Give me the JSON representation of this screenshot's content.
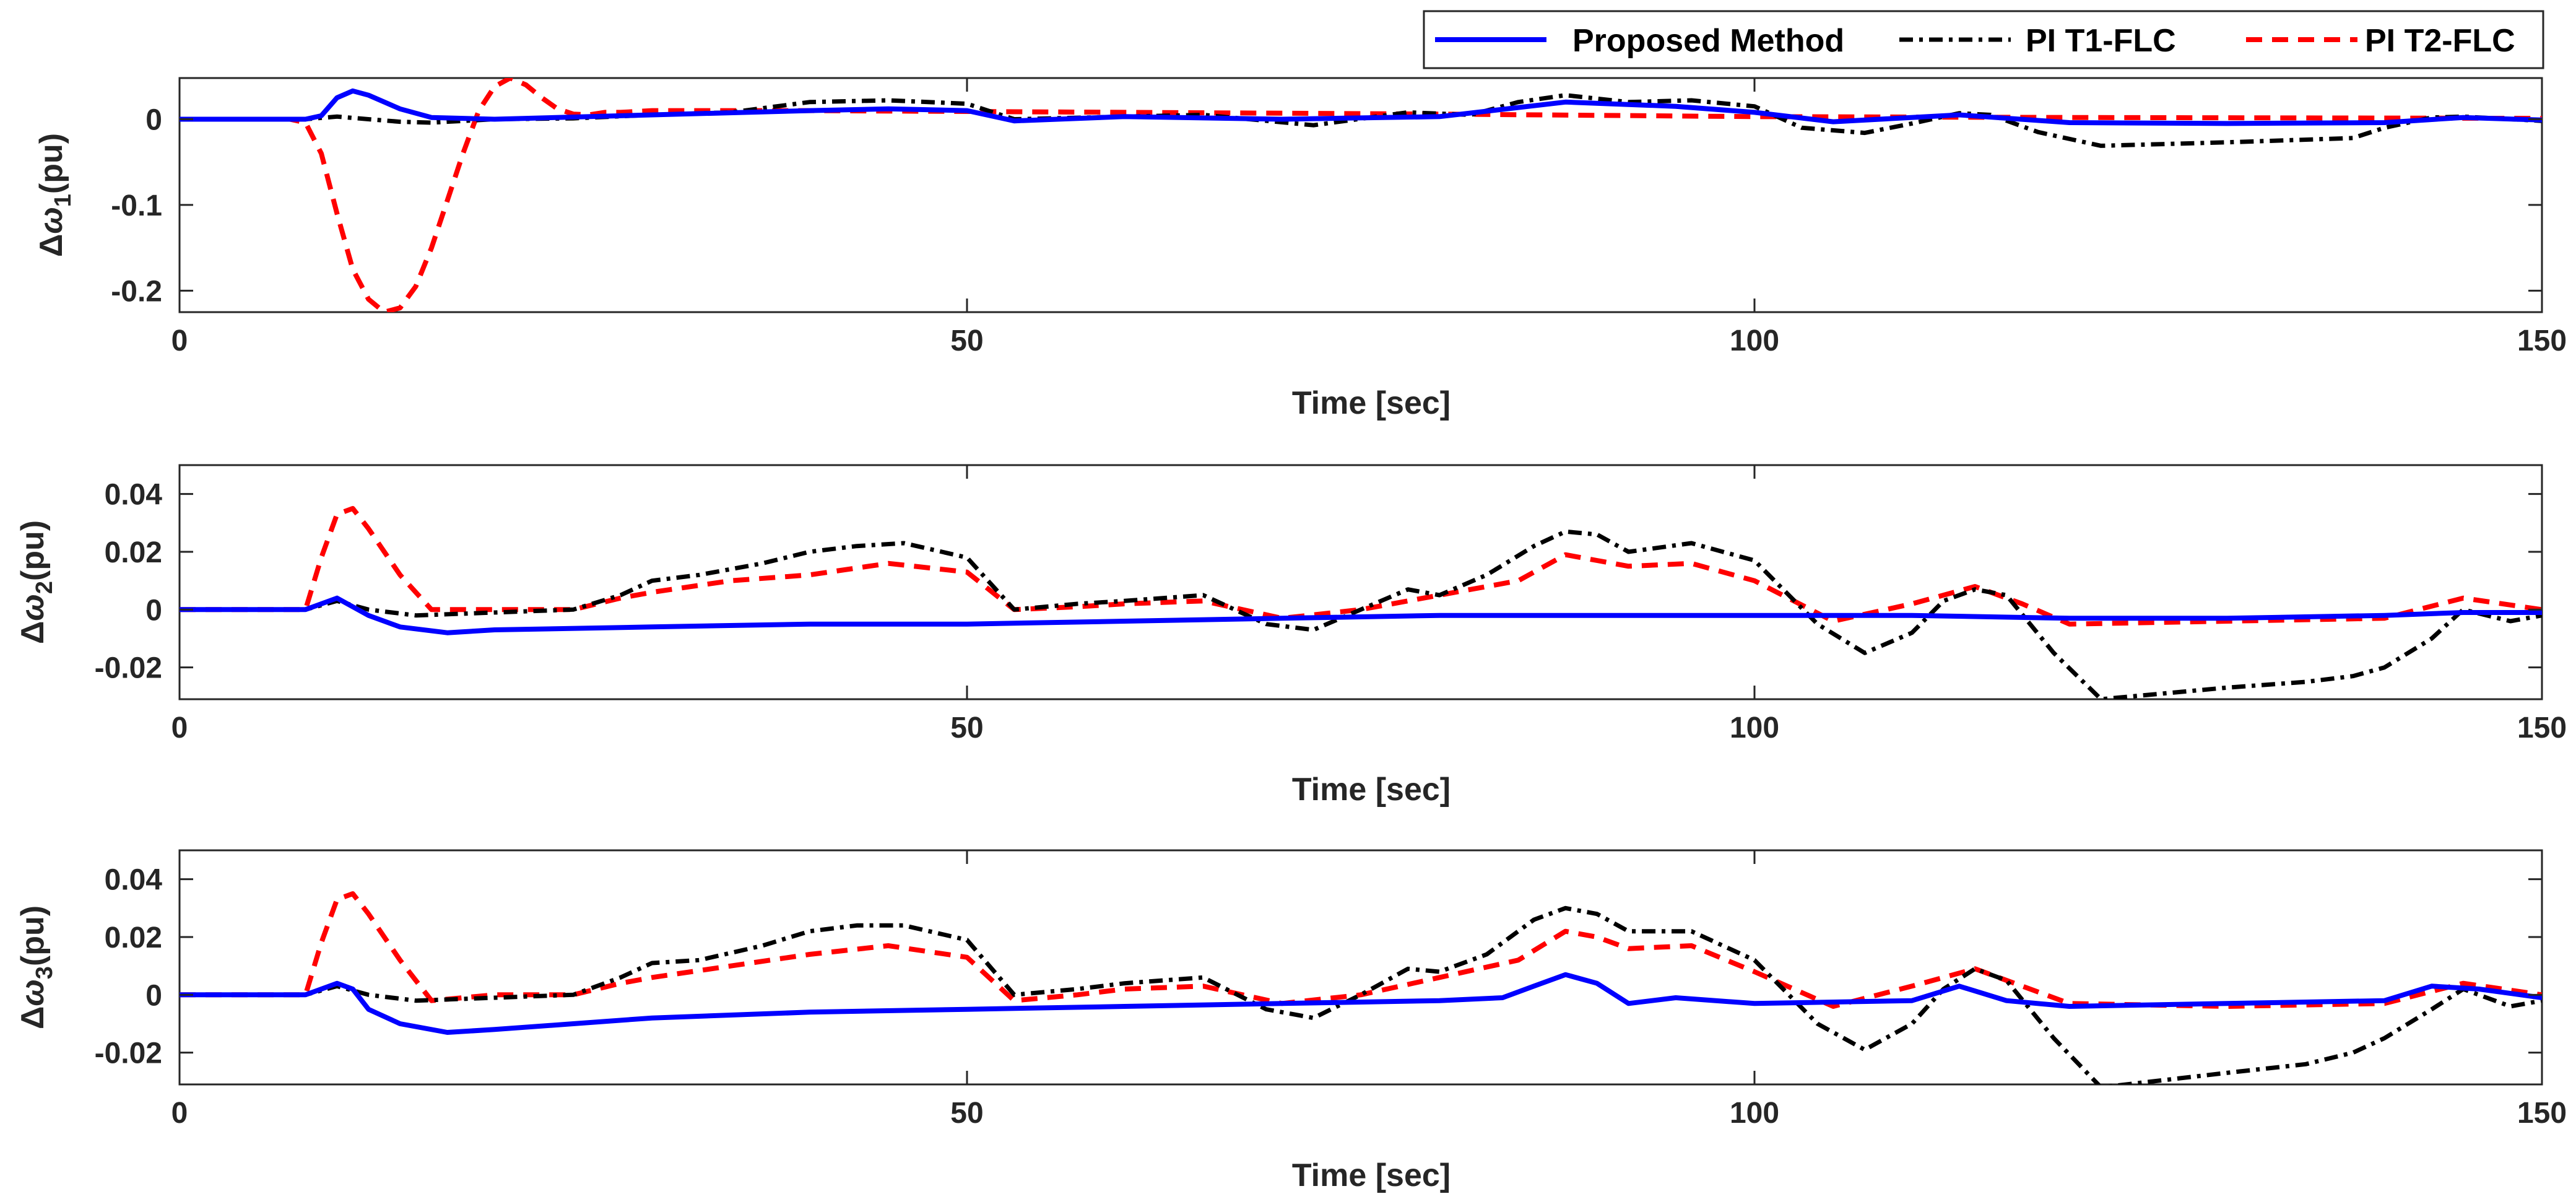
{
  "legend": {
    "entries": [
      {
        "label": "Proposed Method",
        "color": "#0000ff",
        "style": "solid"
      },
      {
        "label": "PI T1-FLC",
        "color": "#000000",
        "style": "dashdot"
      },
      {
        "label": "PI T2-FLC",
        "color": "#ff0000",
        "style": "dashed"
      }
    ]
  },
  "chart_data": [
    {
      "type": "line",
      "title": "",
      "xlabel": "Time [sec]",
      "ylabel": "Δω1(pu)",
      "ylabel_parts": {
        "delta": "Δ",
        "omega": "ω",
        "sub": "1",
        "unit": "(pu)"
      },
      "xlim": [
        0,
        150
      ],
      "ylim": [
        -0.225,
        0.048
      ],
      "xticks": [
        0,
        50,
        100,
        150
      ],
      "xtick_labels": [
        "0",
        "50",
        "100",
        "150"
      ],
      "yticks": [
        0,
        -0.1,
        -0.2
      ],
      "ytick_labels": [
        "0",
        "-0.1",
        "-0.2"
      ],
      "series": [
        {
          "name": "Proposed Method",
          "color": "#0000ff",
          "style": "solid",
          "x": [
            0,
            8,
            9,
            10,
            11,
            12,
            14,
            16,
            20,
            30,
            40,
            45,
            50,
            53,
            60,
            70,
            80,
            88,
            95,
            100,
            105,
            113,
            120,
            130,
            140,
            145,
            150
          ],
          "y": [
            0,
            0,
            0.004,
            0.025,
            0.033,
            0.028,
            0.012,
            0.002,
            0,
            0.005,
            0.01,
            0.012,
            0.01,
            -0.002,
            0.003,
            0,
            0.003,
            0.02,
            0.015,
            0.008,
            -0.003,
            0.005,
            -0.004,
            -0.005,
            -0.004,
            0.002,
            -0.001
          ]
        },
        {
          "name": "PI T1-FLC",
          "color": "#000000",
          "style": "dashdot",
          "x": [
            0,
            8,
            10,
            12,
            14,
            16,
            20,
            25,
            30,
            35,
            40,
            45,
            50,
            53,
            60,
            65,
            72,
            78,
            82,
            85,
            88,
            92,
            96,
            100,
            103,
            107,
            110,
            113,
            115,
            118,
            122,
            130,
            138,
            140,
            143,
            145,
            150
          ],
          "y": [
            0,
            0,
            0.003,
            0.0,
            -0.003,
            -0.004,
            0.0,
            0.001,
            0.005,
            0.008,
            0.02,
            0.022,
            0.018,
            0.0,
            0.003,
            0.005,
            -0.007,
            0.008,
            0.005,
            0.02,
            0.028,
            0.02,
            0.022,
            0.015,
            -0.01,
            -0.016,
            -0.005,
            0.007,
            0.005,
            -0.015,
            -0.031,
            -0.027,
            -0.022,
            -0.01,
            0.002,
            0.003,
            -0.002
          ]
        },
        {
          "name": "PI T2-FLC",
          "color": "#ff0000",
          "style": "dashed",
          "x": [
            0,
            7,
            8,
            9,
            10,
            11,
            12,
            13,
            14,
            15,
            16,
            17,
            18,
            19,
            20,
            21,
            22,
            23,
            24,
            25,
            26,
            27,
            28,
            30,
            40,
            50,
            60,
            80,
            100,
            120,
            150
          ],
          "y": [
            0,
            0,
            -0.004,
            -0.04,
            -0.11,
            -0.175,
            -0.21,
            -0.225,
            -0.22,
            -0.195,
            -0.15,
            -0.095,
            -0.04,
            0.01,
            0.038,
            0.048,
            0.04,
            0.025,
            0.012,
            0.006,
            0.005,
            0.008,
            0.008,
            0.01,
            0.01,
            0.009,
            0.008,
            0.006,
            0.003,
            0.002,
            0.001
          ]
        }
      ]
    },
    {
      "type": "line",
      "title": "",
      "xlabel": "Time [sec]",
      "ylabel": "Δω2(pu)",
      "ylabel_parts": {
        "delta": "Δ",
        "omega": "ω",
        "sub": "2",
        "unit": "(pu)"
      },
      "xlim": [
        0,
        150
      ],
      "ylim": [
        -0.031,
        0.05
      ],
      "xticks": [
        0,
        50,
        100,
        150
      ],
      "xtick_labels": [
        "0",
        "50",
        "100",
        "150"
      ],
      "yticks": [
        0.04,
        0.02,
        0,
        -0.02
      ],
      "ytick_labels": [
        "0.04",
        "0.02",
        "0",
        "-0.02"
      ],
      "series": [
        {
          "name": "Proposed Method",
          "color": "#0000ff",
          "style": "solid",
          "x": [
            0,
            8,
            10,
            12,
            14,
            17,
            20,
            30,
            40,
            50,
            60,
            70,
            80,
            90,
            100,
            110,
            120,
            130,
            140,
            145,
            150
          ],
          "y": [
            0,
            0,
            0.004,
            -0.002,
            -0.006,
            -0.008,
            -0.007,
            -0.006,
            -0.005,
            -0.005,
            -0.004,
            -0.003,
            -0.002,
            -0.002,
            -0.002,
            -0.002,
            -0.003,
            -0.003,
            -0.002,
            -0.001,
            -0.001
          ]
        },
        {
          "name": "PI T1-FLC",
          "color": "#000000",
          "style": "dashdot",
          "x": [
            0,
            8,
            10,
            12,
            15,
            20,
            25,
            28,
            30,
            33,
            37,
            40,
            43,
            46,
            50,
            53,
            57,
            60,
            65,
            69,
            72,
            75,
            78,
            80,
            83,
            86,
            88,
            90,
            92,
            96,
            100,
            104,
            107,
            110,
            112,
            114,
            116,
            119,
            122,
            130,
            135,
            138,
            140,
            143,
            145,
            148,
            150
          ],
          "y": [
            0,
            0,
            0.003,
            0.0,
            -0.002,
            -0.001,
            0.0,
            0.005,
            0.01,
            0.012,
            0.016,
            0.02,
            0.022,
            0.023,
            0.018,
            0.0,
            0.002,
            0.003,
            0.005,
            -0.005,
            -0.007,
            0.0,
            0.007,
            0.005,
            0.012,
            0.022,
            0.027,
            0.026,
            0.02,
            0.023,
            0.017,
            -0.005,
            -0.015,
            -0.008,
            0.003,
            0.007,
            0.005,
            -0.015,
            -0.031,
            -0.027,
            -0.025,
            -0.023,
            -0.02,
            -0.01,
            0.0,
            -0.004,
            -0.002
          ]
        },
        {
          "name": "PI T2-FLC",
          "color": "#ff0000",
          "style": "dashed",
          "x": [
            0,
            8,
            9,
            10,
            11,
            12,
            14,
            16,
            20,
            25,
            28,
            30,
            35,
            40,
            45,
            50,
            53,
            57,
            60,
            65,
            70,
            75,
            80,
            85,
            88,
            90,
            92,
            96,
            100,
            105,
            110,
            114,
            117,
            120,
            130,
            140,
            145,
            150
          ],
          "y": [
            0,
            0,
            0.018,
            0.033,
            0.035,
            0.028,
            0.012,
            0.0,
            0.0,
            0.0,
            0.004,
            0.006,
            0.01,
            0.012,
            0.016,
            0.013,
            0.0,
            0.001,
            0.002,
            0.003,
            -0.003,
            0.0,
            0.005,
            0.01,
            0.019,
            0.017,
            0.015,
            0.016,
            0.01,
            -0.004,
            0.002,
            0.008,
            0.002,
            -0.005,
            -0.004,
            -0.003,
            0.004,
            0.0
          ]
        }
      ]
    },
    {
      "type": "line",
      "title": "",
      "xlabel": "Time [sec]",
      "ylabel": "Δω3(pu)",
      "ylabel_parts": {
        "delta": "Δ",
        "omega": "ω",
        "sub": "3",
        "unit": "(pu)"
      },
      "xlim": [
        0,
        150
      ],
      "ylim": [
        -0.031,
        0.05
      ],
      "xticks": [
        0,
        50,
        100,
        150
      ],
      "xtick_labels": [
        "0",
        "50",
        "100",
        "150"
      ],
      "yticks": [
        0.04,
        0.02,
        0,
        -0.02
      ],
      "ytick_labels": [
        "0.04",
        "0.02",
        "0",
        "-0.02"
      ],
      "series": [
        {
          "name": "Proposed Method",
          "color": "#0000ff",
          "style": "solid",
          "x": [
            0,
            8,
            10,
            11,
            12,
            14,
            17,
            20,
            25,
            30,
            40,
            50,
            60,
            70,
            80,
            84,
            86,
            88,
            90,
            92,
            95,
            100,
            110,
            113,
            116,
            120,
            130,
            140,
            143,
            146,
            150
          ],
          "y": [
            0,
            0,
            0.004,
            0.002,
            -0.005,
            -0.01,
            -0.013,
            -0.012,
            -0.01,
            -0.008,
            -0.006,
            -0.005,
            -0.004,
            -0.003,
            -0.002,
            -0.001,
            0.003,
            0.007,
            0.004,
            -0.003,
            -0.001,
            -0.003,
            -0.002,
            0.003,
            -0.002,
            -0.004,
            -0.003,
            -0.002,
            0.003,
            0.002,
            -0.001
          ]
        },
        {
          "name": "PI T1-FLC",
          "color": "#000000",
          "style": "dashdot",
          "x": [
            0,
            8,
            10,
            12,
            15,
            20,
            25,
            28,
            30,
            33,
            37,
            40,
            43,
            46,
            50,
            53,
            57,
            60,
            65,
            69,
            72,
            75,
            78,
            80,
            83,
            86,
            88,
            90,
            92,
            96,
            100,
            104,
            107,
            110,
            112,
            114,
            116,
            119,
            122,
            130,
            135,
            138,
            140,
            143,
            145,
            148,
            150
          ],
          "y": [
            0,
            0,
            0.003,
            0.0,
            -0.002,
            -0.001,
            0.0,
            0.006,
            0.011,
            0.012,
            0.017,
            0.022,
            0.024,
            0.024,
            0.019,
            0.0,
            0.002,
            0.004,
            0.006,
            -0.005,
            -0.008,
            0.0,
            0.009,
            0.008,
            0.014,
            0.026,
            0.03,
            0.028,
            0.022,
            0.022,
            0.012,
            -0.01,
            -0.019,
            -0.01,
            0.002,
            0.009,
            0.005,
            -0.015,
            -0.032,
            -0.027,
            -0.024,
            -0.02,
            -0.015,
            -0.005,
            0.002,
            -0.004,
            -0.002
          ]
        },
        {
          "name": "PI T2-FLC",
          "color": "#ff0000",
          "style": "dashed",
          "x": [
            0,
            8,
            9,
            10,
            11,
            12,
            14,
            16,
            20,
            25,
            28,
            30,
            35,
            40,
            45,
            50,
            53,
            57,
            60,
            65,
            70,
            75,
            80,
            85,
            88,
            90,
            92,
            96,
            100,
            105,
            110,
            114,
            117,
            120,
            130,
            140,
            145,
            150
          ],
          "y": [
            0,
            0,
            0.018,
            0.033,
            0.035,
            0.028,
            0.012,
            -0.002,
            0.0,
            0.0,
            0.004,
            0.006,
            0.01,
            0.014,
            0.017,
            0.013,
            -0.002,
            0.0,
            0.002,
            0.003,
            -0.003,
            0.0,
            0.006,
            0.012,
            0.022,
            0.02,
            0.016,
            0.017,
            0.008,
            -0.004,
            0.003,
            0.009,
            0.003,
            -0.003,
            -0.004,
            -0.003,
            0.004,
            0.0
          ]
        }
      ]
    }
  ]
}
